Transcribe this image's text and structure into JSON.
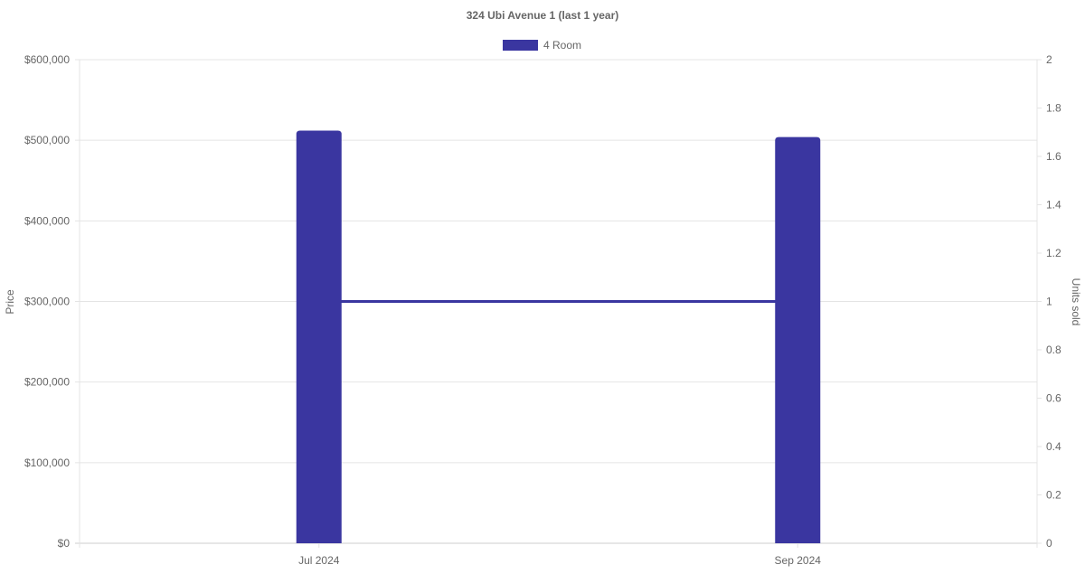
{
  "chart_data": {
    "type": "bar",
    "title": "324 Ubi Avenue 1 (last 1 year)",
    "categories": [
      "Jul 2024",
      "Sep 2024"
    ],
    "series": [
      {
        "name": "4 Room",
        "type": "bar",
        "axis": "left",
        "values": [
          512000,
          504000
        ],
        "color": "#3a36a0"
      },
      {
        "type": "line",
        "axis": "right",
        "values": [
          1,
          1
        ],
        "color": "#3a36a0"
      }
    ],
    "ylabel": "Price",
    "ylabel_right": "Units sold",
    "ylim": [
      0,
      600000
    ],
    "ylim_right": [
      0,
      2
    ],
    "yticks": [
      "$0",
      "$100,000",
      "$200,000",
      "$300,000",
      "$400,000",
      "$500,000",
      "$600,000"
    ],
    "yticks_right": [
      "0",
      "0.2",
      "0.4",
      "0.6",
      "0.8",
      "1",
      "1.2",
      "1.4",
      "1.6",
      "1.8",
      "2"
    ],
    "grid": true,
    "legend": "top"
  }
}
